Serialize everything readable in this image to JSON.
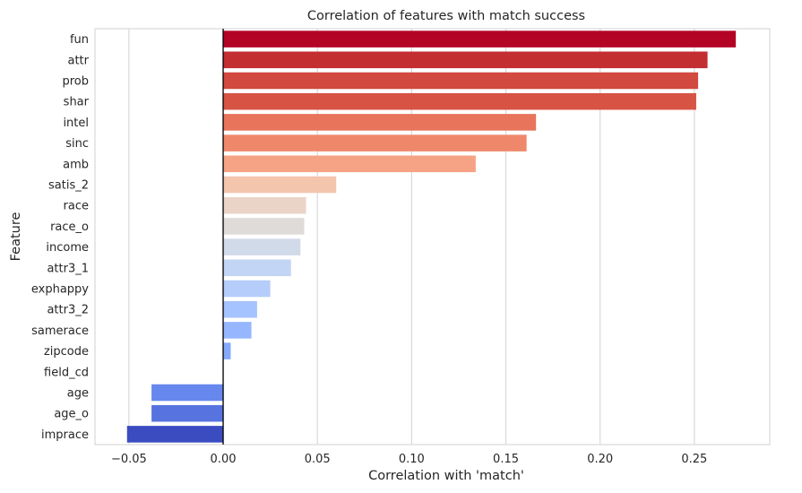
{
  "chart_data": {
    "type": "bar",
    "orientation": "horizontal",
    "title": "Correlation of features with match success",
    "xlabel": "Correlation with 'match'",
    "ylabel": "Feature",
    "xlim": [
      -0.068,
      0.29
    ],
    "xticks": [
      -0.05,
      0.0,
      0.05,
      0.1,
      0.15,
      0.2,
      0.25
    ],
    "xtick_labels": [
      "−0.05",
      "0.00",
      "0.05",
      "0.10",
      "0.15",
      "0.20",
      "0.25"
    ],
    "grid": "vertical",
    "zero_line": true,
    "categories": [
      "fun",
      "attr",
      "prob",
      "shar",
      "intel",
      "sinc",
      "amb",
      "satis_2",
      "race",
      "race_o",
      "income",
      "attr3_1",
      "exphappy",
      "attr3_2",
      "samerace",
      "zipcode",
      "field_cd",
      "age",
      "age_o",
      "imprace"
    ],
    "values": [
      0.272,
      0.257,
      0.252,
      0.251,
      0.166,
      0.161,
      0.134,
      0.06,
      0.044,
      0.043,
      0.041,
      0.036,
      0.025,
      0.018,
      0.015,
      0.004,
      0.0,
      -0.038,
      -0.038,
      -0.051
    ],
    "colors": [
      "#b40426",
      "#c32e31",
      "#d1493f",
      "#d75445",
      "#e7745b",
      "#ef886b",
      "#f6a385",
      "#f4c5ad",
      "#ead4c8",
      "#dfdbd9",
      "#d1dae9",
      "#c3d5f4",
      "#b5cdfa",
      "#a5c3fe",
      "#96b7ff",
      "#86a9fc",
      "#7699f6",
      "#6687ed",
      "#5673e0",
      "#3b4cc0"
    ]
  }
}
